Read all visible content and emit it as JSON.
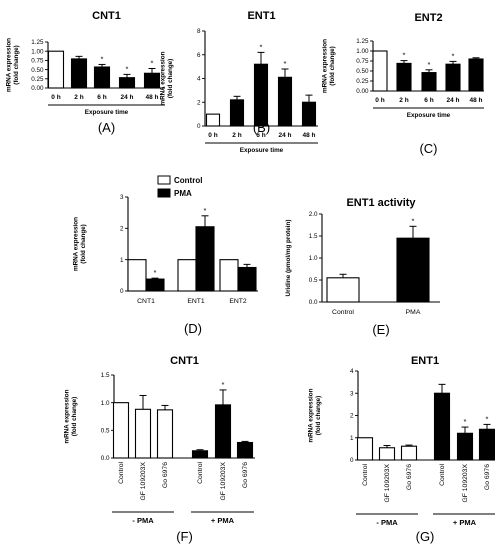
{
  "colors": {
    "control": "#ffffff",
    "treated": "#000000",
    "stroke": "#000000"
  },
  "chart_data": [
    {
      "id": "A",
      "type": "bar",
      "letter": "(A)",
      "title": "CNT1",
      "ylabel_lines": [
        "mRNA expression",
        "(fold change)"
      ],
      "xlabel": "Exposure time",
      "ylim": [
        0,
        1.25
      ],
      "yticks": [
        "0.00",
        "0.25",
        "0.50",
        "0.75",
        "1.00",
        "1.25"
      ],
      "ytick_values": [
        0,
        0.25,
        0.5,
        0.75,
        1.0,
        1.25
      ],
      "categories": [
        "0 h",
        "2 h",
        "6 h",
        "24 h",
        "48 h"
      ],
      "values": [
        1.0,
        0.79,
        0.57,
        0.28,
        0.4
      ],
      "errors": [
        0,
        0.07,
        0.07,
        0.09,
        0.13
      ],
      "fill": [
        "control",
        "treated",
        "treated",
        "treated",
        "treated"
      ],
      "annotations": [
        "",
        "",
        "*",
        "*",
        "*"
      ]
    },
    {
      "id": "B",
      "type": "bar",
      "letter": "(B)",
      "title": "ENT1",
      "ylabel_lines": [
        "mRNA expression",
        "(fold change)"
      ],
      "xlabel": "Exposure time",
      "ylim": [
        0,
        8
      ],
      "yticks": [
        "0",
        "2",
        "4",
        "6",
        "8"
      ],
      "ytick_values": [
        0,
        2,
        4,
        6,
        8
      ],
      "categories": [
        "0 h",
        "2 h",
        "6 h",
        "24 h",
        "48 h"
      ],
      "values": [
        1.0,
        2.2,
        5.2,
        4.1,
        2.0
      ],
      "errors": [
        0,
        0.3,
        1.0,
        0.7,
        0.6
      ],
      "fill": [
        "control",
        "treated",
        "treated",
        "treated",
        "treated"
      ],
      "annotations": [
        "",
        "",
        "*",
        "*",
        ""
      ]
    },
    {
      "id": "C",
      "type": "bar",
      "letter": "(C)",
      "title": "ENT2",
      "ylabel_lines": [
        "mRNA expression",
        "(fold change)"
      ],
      "xlabel": "Exposure time",
      "ylim": [
        0,
        1.25
      ],
      "yticks": [
        "0.00",
        "0.25",
        "0.50",
        "0.75",
        "1.00",
        "1.25"
      ],
      "ytick_values": [
        0,
        0.25,
        0.5,
        0.75,
        1.0,
        1.25
      ],
      "categories": [
        "0 h",
        "2 h",
        "6 h",
        "24 h",
        "48 h"
      ],
      "values": [
        1.0,
        0.69,
        0.46,
        0.67,
        0.8
      ],
      "errors": [
        0,
        0.07,
        0.07,
        0.07,
        0.03
      ],
      "fill": [
        "control",
        "treated",
        "treated",
        "treated",
        "treated"
      ],
      "annotations": [
        "",
        "*",
        "*",
        "*",
        ""
      ]
    },
    {
      "id": "D",
      "type": "bar",
      "letter": "(D)",
      "title": "",
      "ylabel_lines": [
        "mRNA expression",
        "(fold change)"
      ],
      "xlabel": "",
      "ylim": [
        0,
        3
      ],
      "yticks": [
        "0",
        "1",
        "2",
        "3"
      ],
      "ytick_values": [
        0,
        1,
        2,
        3
      ],
      "categories": [
        "CNT1",
        "ENT1",
        "ENT2"
      ],
      "legend": [
        {
          "label": "Control",
          "fill": "control"
        },
        {
          "label": "PMA",
          "fill": "treated"
        }
      ],
      "series": [
        {
          "name": "Control",
          "fill": "control",
          "values": [
            1.0,
            1.0,
            1.0
          ],
          "errors": [
            0,
            0,
            0
          ],
          "annotations": [
            "",
            "",
            ""
          ]
        },
        {
          "name": "PMA",
          "fill": "treated",
          "values": [
            0.38,
            2.05,
            0.75
          ],
          "errors": [
            0.03,
            0.35,
            0.1
          ],
          "annotations": [
            "*",
            "*",
            ""
          ]
        }
      ]
    },
    {
      "id": "E",
      "type": "bar",
      "letter": "(E)",
      "title": "ENT1 activity",
      "ylabel_lines": [
        "Uridine (pmol/mg protein)"
      ],
      "xlabel": "",
      "ylim": [
        0,
        2.0
      ],
      "yticks": [
        "0.0",
        "0.5",
        "1.0",
        "1.5",
        "2.0"
      ],
      "ytick_values": [
        0,
        0.5,
        1.0,
        1.5,
        2.0
      ],
      "categories": [
        "Control",
        "PMA"
      ],
      "values": [
        0.55,
        1.45
      ],
      "errors": [
        0.08,
        0.27
      ],
      "fill": [
        "control",
        "treated"
      ],
      "annotations": [
        "",
        "*"
      ]
    },
    {
      "id": "F",
      "type": "bar",
      "letter": "(F)",
      "title": "CNT1",
      "ylabel_lines": [
        "mRNA expression",
        "(fold change)"
      ],
      "xlabel": "",
      "ylim": [
        0,
        1.5
      ],
      "yticks": [
        "0.0",
        "0.5",
        "1.0",
        "1.5"
      ],
      "ytick_values": [
        0,
        0.5,
        1.0,
        1.5
      ],
      "categories": [
        "Control",
        "GF 109203X",
        "Go 6976",
        "Control",
        "GF 109203X",
        "Go 6976"
      ],
      "values": [
        1.0,
        0.88,
        0.87,
        0.13,
        0.96,
        0.28
      ],
      "errors": [
        0,
        0.25,
        0.08,
        0.02,
        0.27,
        0.02
      ],
      "fill": [
        "control",
        "control",
        "control",
        "treated",
        "treated",
        "treated"
      ],
      "annotations": [
        "",
        "",
        "",
        "",
        "*",
        ""
      ],
      "groups": [
        {
          "label": "- PMA",
          "span": [
            0,
            2
          ]
        },
        {
          "label": "+ PMA",
          "span": [
            3,
            5
          ]
        }
      ]
    },
    {
      "id": "G",
      "type": "bar",
      "letter": "(G)",
      "title": "ENT1",
      "ylabel_lines": [
        "mRNA expression",
        "(fold change)"
      ],
      "xlabel": "",
      "ylim": [
        0,
        4
      ],
      "yticks": [
        "0",
        "1",
        "2",
        "3",
        "4"
      ],
      "ytick_values": [
        0,
        1,
        2,
        3,
        4
      ],
      "categories": [
        "Control",
        "GF 109203X",
        "Go 6976",
        "Control",
        "GF 109203X",
        "Go 6976"
      ],
      "values": [
        1.0,
        0.55,
        0.62,
        3.0,
        1.2,
        1.38
      ],
      "errors": [
        0,
        0.1,
        0.05,
        0.4,
        0.28,
        0.22
      ],
      "fill": [
        "control",
        "control",
        "control",
        "treated",
        "treated",
        "treated"
      ],
      "annotations": [
        "",
        "",
        "",
        "",
        "*",
        "*"
      ],
      "groups": [
        {
          "label": "- PMA",
          "span": [
            0,
            2
          ]
        },
        {
          "label": "+ PMA",
          "span": [
            3,
            5
          ]
        }
      ]
    }
  ]
}
